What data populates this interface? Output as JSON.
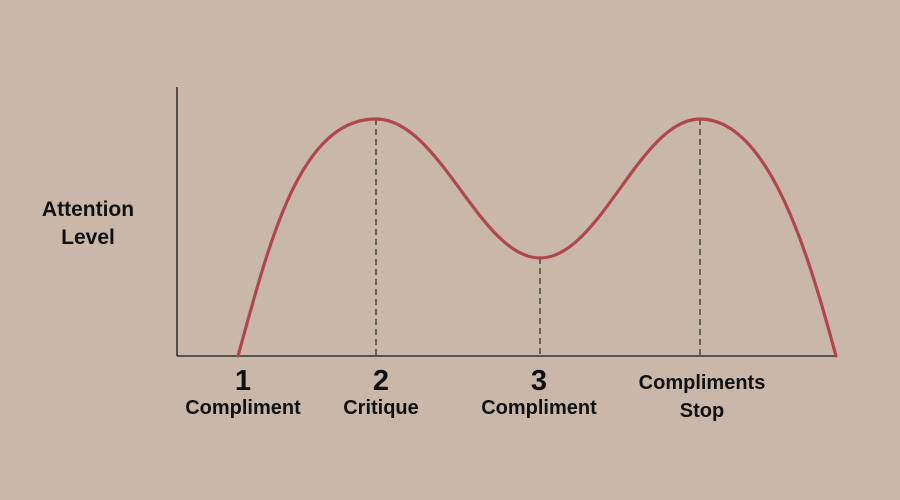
{
  "colors": {
    "background": "#c9b8aa",
    "curve": "#b0474b",
    "axis": "#333333",
    "guide": "#333333",
    "text": "#111111"
  },
  "y_axis_label": "Attention\nLevel",
  "markers": [
    {
      "number": "1",
      "label": "Compliment"
    },
    {
      "number": "2",
      "label": "Critique"
    },
    {
      "number": "3",
      "label": "Compliment"
    },
    {
      "number": "",
      "label": "Compliments\nStop"
    }
  ],
  "curve": {
    "description_points": "start low at 1, peak at 2, trough at 3, peak again at 4, fall to zero",
    "levels": [
      0.0,
      1.0,
      0.42,
      1.0,
      0.0
    ]
  }
}
